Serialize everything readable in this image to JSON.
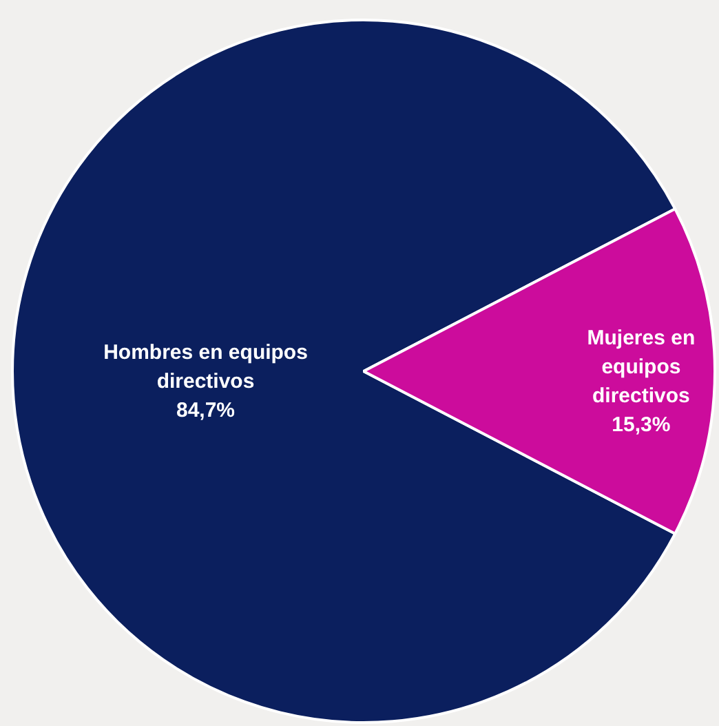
{
  "chart_data": {
    "type": "pie",
    "categories": [
      "Hombres en equipos directivos",
      "Mujeres en equipos directivos"
    ],
    "values": [
      84.7,
      15.3
    ],
    "colors": [
      "#0b1f5e",
      "#cc0c9c"
    ],
    "value_labels": [
      "84,7%",
      "15,3%"
    ],
    "legend": false
  }
}
